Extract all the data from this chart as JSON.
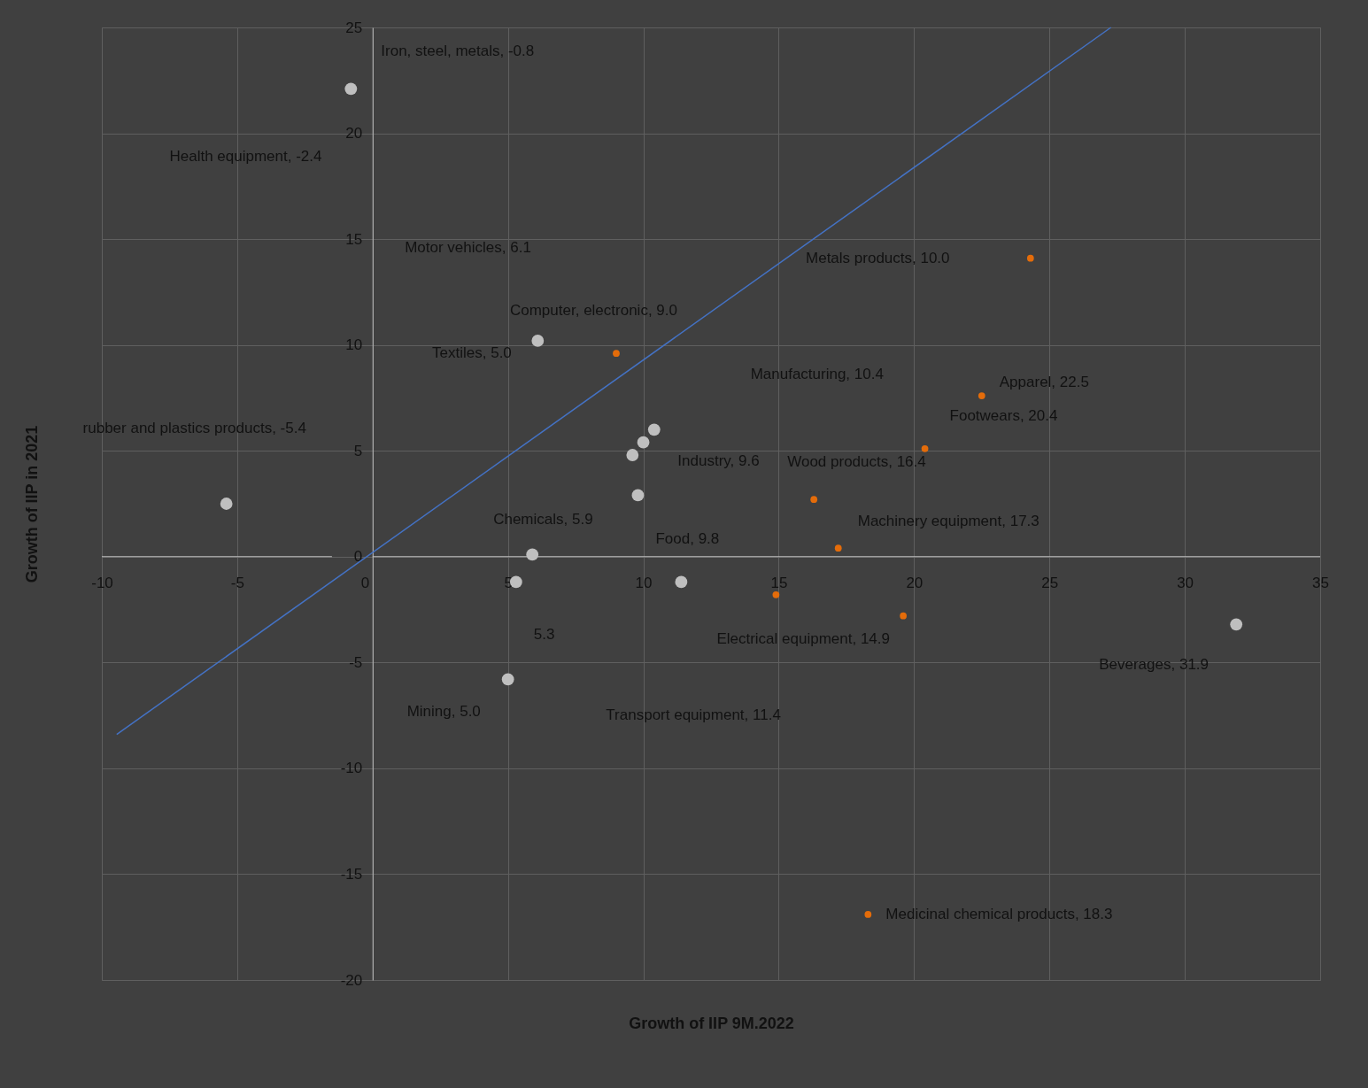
{
  "chart_data": {
    "type": "scatter",
    "xlabel": "Growth of IIP 9M.2022",
    "ylabel": "Growth of IIP in 2021",
    "xlim": [
      -10,
      35
    ],
    "ylim": [
      -20,
      25
    ],
    "xticks": [
      -10,
      -5,
      0,
      5,
      10,
      15,
      20,
      25,
      30,
      35
    ],
    "yticks": [
      -20,
      -15,
      -10,
      -5,
      0,
      5,
      10,
      15,
      20,
      25
    ],
    "grid": true,
    "marker": "circle",
    "ref_lines": [
      {
        "axis": "y",
        "value": 0,
        "color": "#bfbfbf"
      }
    ],
    "annotations": [
      {
        "text": "Iron, steel, metals, -0.8",
        "x": -0.8,
        "y": 22.1
      },
      "Motor vehicles, 6.1",
      "Metals products, 10.0",
      "Manufacturing, 10.4",
      {
        "text": "Industry, 9.6",
        "x": 9.6,
        "y": 4.8
      },
      {
        "text": "Food, 9.8",
        "x": 9.8,
        "y": 2.9
      },
      {
        "text": "Chemicals, 5.9",
        "x": 5.9,
        "y": 0.1
      },
      "5.3",
      {
        "text": "Mining, 5.0",
        "x": 5.0,
        "y": -5.8
      },
      "Transport equipment, 11.4",
      "rubber and plastics products, -5.4",
      {
        "text": "Beverages, 31.9",
        "x": 31.9,
        "y": -3.2
      },
      {
        "text": "Computer, electronic, 9.0",
        "x": 9.0,
        "y": 9.6
      },
      {
        "text": "Wood products, 16.4",
        "x": 16.3,
        "y": 2.7
      },
      {
        "text": "Machinery equipment, 17.3",
        "x": 17.2,
        "y": 0.4
      },
      {
        "text": "Apparel, 22.5",
        "x": 22.5,
        "y": 7.6
      },
      {
        "text": "Footwears, 20.4",
        "x": 20.4,
        "y": 5.1
      },
      {
        "text": "Electrical equipment, 14.9",
        "x": 14.9,
        "y": -1.8
      },
      {
        "text": "Medicinal chemical products, 18.3",
        "x": 18.3,
        "y": -16.9
      },
      "Health equipment, -2.4",
      "Textiles, 5.0"
    ],
    "series": [
      {
        "color": "#bfbfbf",
        "x": [
          -0.8,
          6.1,
          10.0,
          10.4,
          9.6,
          9.8,
          5.9,
          5.3,
          5.0,
          11.4,
          -5.4,
          31.9
        ],
        "values": [
          22.1,
          10.2,
          5.4,
          6.0,
          4.8,
          2.9,
          0.1,
          -1.2,
          -5.8,
          -1.2,
          2.5,
          -3.2
        ]
      },
      {
        "color": "#e46c0a",
        "x": [
          9.0,
          16.3,
          17.2,
          22.5,
          20.4,
          14.9,
          19.6,
          24.3,
          18.3
        ],
        "values": [
          9.6,
          2.7,
          0.4,
          7.6,
          5.1,
          -1.8,
          -2.8,
          14.1,
          -16.9
        ]
      },
      {
        "type": "line",
        "marker": "none",
        "color": "#4472c4",
        "x": [
          -9.45,
          27.27
        ],
        "values": [
          -8.4,
          25.0
        ]
      }
    ]
  }
}
